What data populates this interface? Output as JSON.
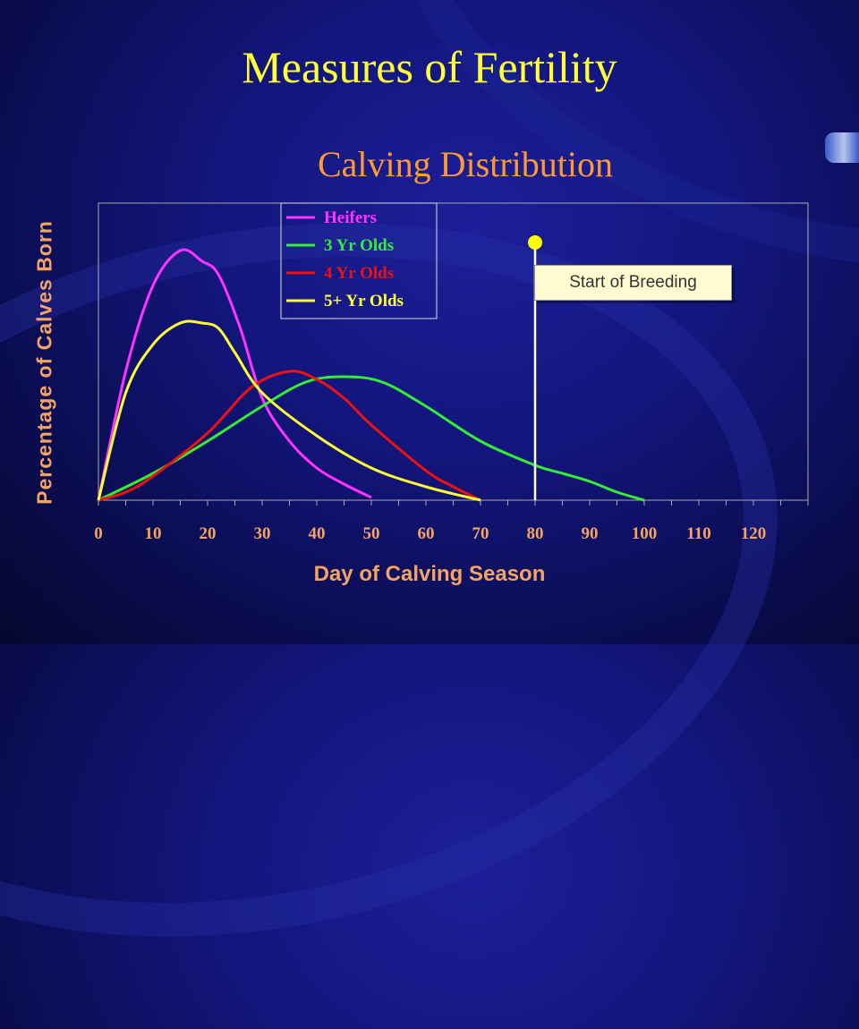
{
  "slide": {
    "title": "Measures of Fertility",
    "subtitle": "Calving Distribution"
  },
  "colors": {
    "title": "#ffff33",
    "subtitle": "#ff9933",
    "axis_label": "#f4a460",
    "heifers": "#ff33ff",
    "three_yr": "#33ee33",
    "four_yr": "#ee1111",
    "five_plus": "#ffff33",
    "marker": "#ffffff",
    "marker_dot": "#ffff00"
  },
  "chart_data": {
    "type": "line",
    "title": "Calving Distribution",
    "xlabel": "Day of Calving Season",
    "ylabel": "Percentage of Calves Born",
    "xlim": [
      0,
      130
    ],
    "ylim": [
      0,
      100
    ],
    "x_ticks": [
      "0",
      "10",
      "20",
      "30",
      "40",
      "50",
      "60",
      "70",
      "80",
      "90",
      "100",
      "110",
      "120"
    ],
    "grid": false,
    "legend_position": "top-left",
    "series": [
      {
        "name": "Heifers",
        "color": "#ff33ff",
        "points": [
          [
            0,
            0
          ],
          [
            5,
            48
          ],
          [
            10,
            80
          ],
          [
            15,
            93
          ],
          [
            19,
            89
          ],
          [
            22,
            84
          ],
          [
            26,
            64
          ],
          [
            30,
            38
          ],
          [
            35,
            22
          ],
          [
            40,
            12
          ],
          [
            45,
            6
          ],
          [
            50,
            1
          ]
        ]
      },
      {
        "name": "3 Yr Olds",
        "color": "#33ee33",
        "points": [
          [
            0,
            0
          ],
          [
            10,
            10
          ],
          [
            20,
            22
          ],
          [
            30,
            35
          ],
          [
            38,
            44
          ],
          [
            45,
            46
          ],
          [
            52,
            44
          ],
          [
            60,
            35
          ],
          [
            70,
            22
          ],
          [
            80,
            13
          ],
          [
            85,
            10
          ],
          [
            90,
            7
          ],
          [
            95,
            3
          ],
          [
            100,
            0
          ]
        ]
      },
      {
        "name": "4 Yr Olds",
        "color": "#ee1111",
        "points": [
          [
            0,
            0
          ],
          [
            5,
            3
          ],
          [
            10,
            9
          ],
          [
            20,
            25
          ],
          [
            28,
            42
          ],
          [
            35,
            48
          ],
          [
            40,
            45
          ],
          [
            45,
            38
          ],
          [
            50,
            28
          ],
          [
            60,
            11
          ],
          [
            65,
            5
          ],
          [
            70,
            0
          ]
        ]
      },
      {
        "name": "5+ Yr Olds",
        "color": "#ffff33",
        "points": [
          [
            0,
            0
          ],
          [
            5,
            40
          ],
          [
            10,
            58
          ],
          [
            15,
            66
          ],
          [
            19,
            66
          ],
          [
            22,
            64
          ],
          [
            25,
            55
          ],
          [
            30,
            40
          ],
          [
            40,
            24
          ],
          [
            50,
            12
          ],
          [
            60,
            5
          ],
          [
            70,
            0
          ]
        ]
      }
    ],
    "annotation": {
      "x": 80,
      "label": "Start of Breeding"
    }
  }
}
